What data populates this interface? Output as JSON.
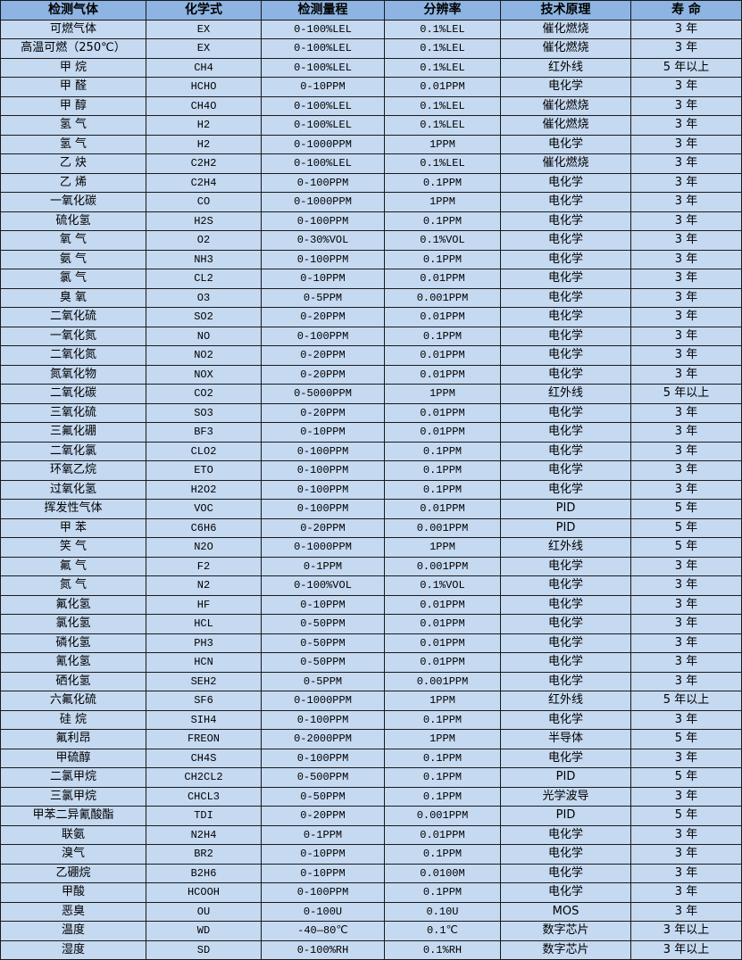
{
  "table": {
    "headers": [
      "检测气体",
      "化学式",
      "检测量程",
      "分辨率",
      "技术原理",
      "寿 命"
    ],
    "rows": [
      [
        "可燃气体",
        "EX",
        "0-100%LEL",
        "0.1%LEL",
        "催化燃烧",
        "3 年"
      ],
      [
        "高温可燃（250℃）",
        "EX",
        "0-100%LEL",
        "0.1%LEL",
        "催化燃烧",
        "3 年"
      ],
      [
        "甲 烷",
        "CH4",
        "0-100%LEL",
        "0.1%LEL",
        "红外线",
        "5 年以上"
      ],
      [
        "甲 醛",
        "HCHO",
        "0-10PPM",
        "0.01PPM",
        "电化学",
        "3 年"
      ],
      [
        "甲 醇",
        "CH4O",
        "0-100%LEL",
        "0.1%LEL",
        "催化燃烧",
        "3 年"
      ],
      [
        "氢 气",
        "H2",
        "0-100%LEL",
        "0.1%LEL",
        "催化燃烧",
        "3 年"
      ],
      [
        "氢 气",
        "H2",
        "0-1000PPM",
        "1PPM",
        "电化学",
        "3 年"
      ],
      [
        "乙 炔",
        "C2H2",
        "0-100%LEL",
        "0.1%LEL",
        "催化燃烧",
        "3 年"
      ],
      [
        "乙 烯",
        "C2H4",
        "0-100PPM",
        "0.1PPM",
        "电化学",
        "3 年"
      ],
      [
        "一氧化碳",
        "CO",
        "0-1000PPM",
        "1PPM",
        "电化学",
        "3 年"
      ],
      [
        "硫化氢",
        "H2S",
        "0-100PPM",
        "0.1PPM",
        "电化学",
        "3 年"
      ],
      [
        "氧 气",
        "O2",
        "0-30%VOL",
        "0.1%VOL",
        "电化学",
        "3 年"
      ],
      [
        "氨 气",
        "NH3",
        "0-100PPM",
        "0.1PPM",
        "电化学",
        "3 年"
      ],
      [
        "氯 气",
        "CL2",
        "0-10PPM",
        "0.01PPM",
        "电化学",
        "3 年"
      ],
      [
        "臭 氧",
        "O3",
        "0-5PPM",
        "0.001PPM",
        "电化学",
        "3 年"
      ],
      [
        "二氧化硫",
        "SO2",
        "0-20PPM",
        "0.01PPM",
        "电化学",
        "3 年"
      ],
      [
        "一氧化氮",
        "NO",
        "0-100PPM",
        "0.1PPM",
        "电化学",
        "3 年"
      ],
      [
        "二氧化氮",
        "NO2",
        "0-20PPM",
        "0.01PPM",
        "电化学",
        "3 年"
      ],
      [
        "氮氧化物",
        "NOX",
        "0-20PPM",
        "0.01PPM",
        "电化学",
        "3 年"
      ],
      [
        "二氧化碳",
        "CO2",
        "0-5000PPM",
        "1PPM",
        "红外线",
        "5 年以上"
      ],
      [
        "三氧化硫",
        "SO3",
        "0-20PPM",
        "0.01PPM",
        "电化学",
        "3 年"
      ],
      [
        "三氟化硼",
        "BF3",
        "0-10PPM",
        "0.01PPM",
        "电化学",
        "3 年"
      ],
      [
        "二氧化氯",
        "CLO2",
        "0-100PPM",
        "0.1PPM",
        "电化学",
        "3 年"
      ],
      [
        "环氧乙烷",
        "ETO",
        "0-100PPM",
        "0.1PPM",
        "电化学",
        "3 年"
      ],
      [
        "过氧化氢",
        "H2O2",
        "0-100PPM",
        "0.1PPM",
        "电化学",
        "3 年"
      ],
      [
        "挥发性气体",
        "VOC",
        "0-100PPM",
        "0.01PPM",
        "PID",
        "5 年"
      ],
      [
        "甲 苯",
        "C6H6",
        "0-20PPM",
        "0.001PPM",
        "PID",
        "5 年"
      ],
      [
        "笑 气",
        "N2O",
        "0-1000PPM",
        "1PPM",
        "红外线",
        "5 年"
      ],
      [
        "氟 气",
        "F2",
        "0-1PPM",
        "0.001PPM",
        "电化学",
        "3 年"
      ],
      [
        "氮 气",
        "N2",
        "0-100%VOL",
        "0.1%VOL",
        "电化学",
        "3 年"
      ],
      [
        "氟化氢",
        "HF",
        "0-10PPM",
        "0.01PPM",
        "电化学",
        "3 年"
      ],
      [
        "氯化氢",
        "HCL",
        "0-50PPM",
        "0.01PPM",
        "电化学",
        "3 年"
      ],
      [
        "磷化氢",
        "PH3",
        "0-50PPM",
        "0.01PPM",
        "电化学",
        "3 年"
      ],
      [
        "氰化氢",
        "HCN",
        "0-50PPM",
        "0.01PPM",
        "电化学",
        "3 年"
      ],
      [
        "硒化氢",
        "SEH2",
        "0-5PPM",
        "0.001PPM",
        "电化学",
        "3 年"
      ],
      [
        "六氟化硫",
        "SF6",
        "0-1000PPM",
        "1PPM",
        "红外线",
        "5 年以上"
      ],
      [
        "硅 烷",
        "SIH4",
        "0-100PPM",
        "0.1PPM",
        "电化学",
        "3 年"
      ],
      [
        "氟利昂",
        "FREON",
        "0-2000PPM",
        "1PPM",
        "半导体",
        "5 年"
      ],
      [
        "甲硫醇",
        "CH4S",
        "0-100PPM",
        "0.1PPM",
        "电化学",
        "3 年"
      ],
      [
        "二氯甲烷",
        "CH2CL2",
        "0-500PPM",
        "0.1PPM",
        "PID",
        "5 年"
      ],
      [
        "三氯甲烷",
        "CHCL3",
        "0-50PPM",
        "0.1PPM",
        "光学波导",
        "3 年"
      ],
      [
        "甲苯二异氰酸酯",
        "TDI",
        "0-20PPM",
        "0.001PPM",
        "PID",
        "5 年"
      ],
      [
        "联氨",
        "N2H4",
        "0-1PPM",
        "0.01PPM",
        "电化学",
        "3 年"
      ],
      [
        "溴气",
        "BR2",
        "0-10PPM",
        "0.1PPM",
        "电化学",
        "3 年"
      ],
      [
        "乙硼烷",
        "B2H6",
        "0-10PPM",
        "0.0100M",
        "电化学",
        "3 年"
      ],
      [
        "甲酸",
        "HCOOH",
        "0-100PPM",
        "0.1PPM",
        "电化学",
        "3 年"
      ],
      [
        "恶臭",
        "OU",
        "0-100U",
        "0.10U",
        "MOS",
        "3 年"
      ],
      [
        "温度",
        "WD",
        "-40—80℃",
        "0.1℃",
        "数字芯片",
        "3 年以上"
      ],
      [
        "湿度",
        "SD",
        "0-100%RH",
        "0.1%RH",
        "数字芯片",
        "3 年以上"
      ]
    ]
  },
  "colors": {
    "header_bg": "#8db4e2",
    "row_bg": "#c5d9f1",
    "border": "#1a1a1a"
  }
}
